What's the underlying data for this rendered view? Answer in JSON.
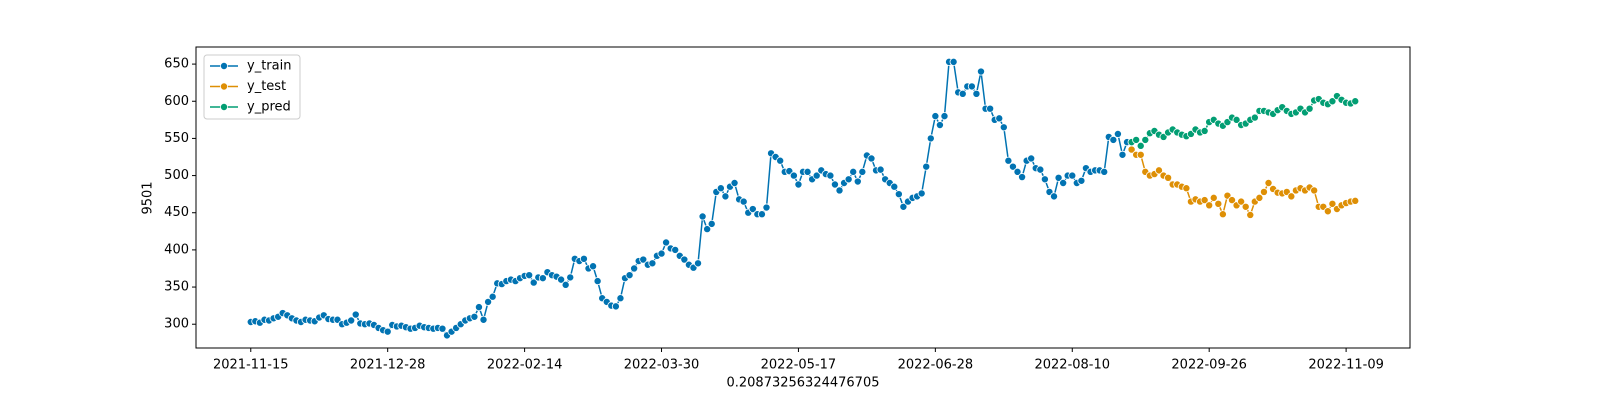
{
  "chart_data": {
    "type": "line",
    "xlabel": "0.20873256324476705",
    "ylabel": "9501",
    "xlim": [
      -12,
      254
    ],
    "xticks": [
      {
        "value": 0,
        "label": "2021-11-15"
      },
      {
        "value": 30,
        "label": "2021-12-28"
      },
      {
        "value": 60,
        "label": "2022-02-14"
      },
      {
        "value": 90,
        "label": "2022-03-30"
      },
      {
        "value": 120,
        "label": "2022-05-17"
      },
      {
        "value": 150,
        "label": "2022-06-28"
      },
      {
        "value": 180,
        "label": "2022-08-10"
      },
      {
        "value": 210,
        "label": "2022-09-26"
      },
      {
        "value": 240,
        "label": "2022-11-09"
      }
    ],
    "ylim": [
      268,
      673
    ],
    "yticks": [
      300,
      350,
      400,
      450,
      500,
      550,
      600,
      650
    ],
    "legend": "upper left",
    "series": [
      {
        "name": "y_train",
        "color": "#0173b2",
        "values": [
          303,
          304,
          302,
          306,
          305,
          308,
          310,
          315,
          312,
          308,
          305,
          303,
          306,
          305,
          304,
          309,
          312,
          307,
          306,
          306,
          300,
          302,
          305,
          313,
          301,
          300,
          301,
          299,
          295,
          292,
          290,
          299,
          297,
          298,
          296,
          294,
          295,
          298,
          296,
          295,
          294,
          295,
          294,
          285,
          290,
          295,
          300,
          305,
          308,
          310,
          323,
          306,
          330,
          337,
          355,
          354,
          358,
          360,
          358,
          362,
          365,
          366,
          356,
          363,
          362,
          370,
          366,
          364,
          360,
          353,
          363,
          388,
          385,
          388,
          375,
          378,
          358,
          335,
          330,
          325,
          324,
          335,
          362,
          366,
          375,
          385,
          387,
          380,
          382,
          392,
          395,
          410,
          402,
          400,
          392,
          387,
          380,
          376,
          382,
          445,
          428,
          435,
          478,
          483,
          472,
          485,
          490,
          468,
          465,
          450,
          455,
          448,
          448,
          457,
          530,
          525,
          520,
          505,
          506,
          500,
          488,
          505,
          505,
          495,
          500,
          507,
          502,
          500,
          488,
          480,
          490,
          495,
          505,
          492,
          505,
          527,
          523,
          507,
          508,
          495,
          490,
          485,
          475,
          458,
          465,
          470,
          472,
          476,
          512,
          550,
          580,
          568,
          580,
          653,
          653,
          612,
          610,
          620,
          620,
          610,
          640,
          590,
          590,
          575,
          577,
          565,
          520,
          512,
          505,
          498,
          520,
          523,
          510,
          508,
          495,
          478,
          472,
          497,
          490,
          500,
          500,
          490,
          493,
          510,
          505,
          507,
          507,
          505,
          552,
          548,
          556,
          528,
          545
        ]
      },
      {
        "name": "y_test",
        "color": "#de8f05",
        "values": [
          null,
          null,
          null,
          null,
          null,
          null,
          null,
          null,
          null,
          null,
          null,
          null,
          null,
          null,
          null,
          null,
          null,
          null,
          null,
          null,
          null,
          null,
          null,
          null,
          null,
          null,
          null,
          null,
          null,
          null,
          null,
          null,
          null,
          null,
          null,
          null,
          null,
          null,
          null,
          null,
          null,
          null,
          null,
          null,
          null,
          null,
          null,
          null,
          null,
          null,
          null,
          null,
          null,
          null,
          null,
          null,
          null,
          null,
          null,
          null,
          null,
          null,
          null,
          null,
          null,
          null,
          null,
          null,
          null,
          null,
          null,
          null,
          null,
          null,
          null,
          null,
          null,
          null,
          null,
          null,
          null,
          null,
          null,
          null,
          null,
          null,
          null,
          null,
          null,
          null,
          null,
          null,
          null,
          null,
          null,
          null,
          null,
          null,
          null,
          null,
          null,
          null,
          null,
          null,
          null,
          null,
          null,
          null,
          null,
          null,
          null,
          null,
          null,
          null,
          null,
          null,
          null,
          null,
          null,
          null,
          null,
          null,
          null,
          null,
          null,
          null,
          null,
          null,
          null,
          null,
          null,
          null,
          null,
          null,
          null,
          null,
          null,
          null,
          null,
          null,
          null,
          null,
          null,
          null,
          null,
          null,
          null,
          null,
          null,
          null,
          null,
          null,
          null,
          null,
          null,
          null,
          null,
          null,
          null,
          null,
          null,
          null,
          null,
          null,
          null,
          null,
          null,
          null,
          null,
          null,
          null,
          null,
          null,
          null,
          null,
          null,
          null,
          null,
          null,
          null,
          null,
          null,
          null,
          null,
          null,
          null,
          null,
          null,
          null,
          null,
          null,
          null,
          null,
          535,
          528,
          528,
          505,
          500,
          502,
          507,
          500,
          497,
          488,
          488,
          485,
          483,
          465,
          468,
          465,
          467,
          460,
          470,
          462,
          448,
          473,
          467,
          460,
          465,
          458,
          447,
          465,
          470,
          478,
          490,
          482,
          477,
          476,
          478,
          472,
          480,
          483,
          480,
          484,
          480,
          458,
          458,
          452,
          462,
          455,
          460,
          463,
          465,
          466
        ]
      },
      {
        "name": "y_pred",
        "color": "#029e73",
        "values": [
          null,
          null,
          null,
          null,
          null,
          null,
          null,
          null,
          null,
          null,
          null,
          null,
          null,
          null,
          null,
          null,
          null,
          null,
          null,
          null,
          null,
          null,
          null,
          null,
          null,
          null,
          null,
          null,
          null,
          null,
          null,
          null,
          null,
          null,
          null,
          null,
          null,
          null,
          null,
          null,
          null,
          null,
          null,
          null,
          null,
          null,
          null,
          null,
          null,
          null,
          null,
          null,
          null,
          null,
          null,
          null,
          null,
          null,
          null,
          null,
          null,
          null,
          null,
          null,
          null,
          null,
          null,
          null,
          null,
          null,
          null,
          null,
          null,
          null,
          null,
          null,
          null,
          null,
          null,
          null,
          null,
          null,
          null,
          null,
          null,
          null,
          null,
          null,
          null,
          null,
          null,
          null,
          null,
          null,
          null,
          null,
          null,
          null,
          null,
          null,
          null,
          null,
          null,
          null,
          null,
          null,
          null,
          null,
          null,
          null,
          null,
          null,
          null,
          null,
          null,
          null,
          null,
          null,
          null,
          null,
          null,
          null,
          null,
          null,
          null,
          null,
          null,
          null,
          null,
          null,
          null,
          null,
          null,
          null,
          null,
          null,
          null,
          null,
          null,
          null,
          null,
          null,
          null,
          null,
          null,
          null,
          null,
          null,
          null,
          null,
          null,
          null,
          null,
          null,
          null,
          null,
          null,
          null,
          null,
          null,
          null,
          null,
          null,
          null,
          null,
          null,
          null,
          null,
          null,
          null,
          null,
          null,
          null,
          null,
          null,
          null,
          null,
          null,
          null,
          null,
          null,
          null,
          null,
          null,
          null,
          null,
          null,
          null,
          null,
          null,
          null,
          null,
          null,
          545,
          548,
          540,
          548,
          557,
          560,
          555,
          552,
          558,
          562,
          558,
          555,
          553,
          556,
          562,
          558,
          560,
          572,
          575,
          570,
          567,
          572,
          578,
          575,
          568,
          570,
          575,
          578,
          587,
          587,
          585,
          583,
          588,
          592,
          587,
          583,
          585,
          590,
          585,
          590,
          601,
          603,
          598,
          596,
          600,
          607,
          602,
          598,
          597,
          600
        ]
      }
    ]
  }
}
